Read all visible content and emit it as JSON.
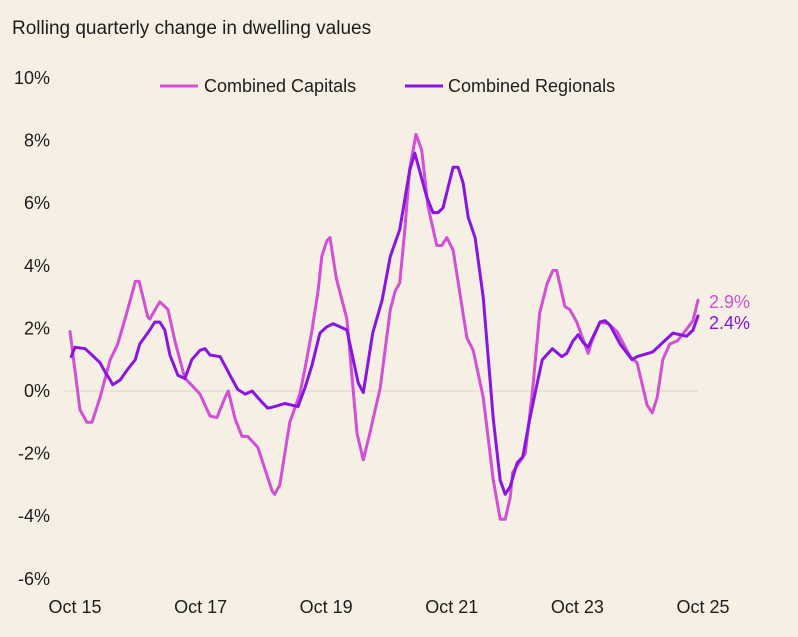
{
  "chart_data": {
    "type": "line",
    "title": "Rolling quarterly change in dwelling values",
    "xlabel": "",
    "ylabel": "",
    "ylim": [
      -6,
      10
    ],
    "xlim": [
      2015.75,
      2025.75
    ],
    "yticks": [
      "10%",
      "8%",
      "6%",
      "4%",
      "2%",
      "0%",
      "-2%",
      "-4%",
      "-6%"
    ],
    "ytick_values": [
      10,
      8,
      6,
      4,
      2,
      0,
      -2,
      -4,
      -6
    ],
    "xticks": [
      "Oct 15",
      "Oct 17",
      "Oct 19",
      "Oct 21",
      "Oct 23",
      "Oct 25"
    ],
    "xtick_values": [
      2015.75,
      2017.75,
      2019.75,
      2021.75,
      2023.75,
      2025.75
    ],
    "grid": false,
    "zero_line": true,
    "legend_position": "top",
    "series": [
      {
        "name": "Combined Capitals",
        "color": "#d24fd6",
        "end_label": "2.9%",
        "points": [
          [
            2015.75,
            1.9
          ],
          [
            2015.91,
            -0.6
          ],
          [
            2016.02,
            -1.0
          ],
          [
            2016.1,
            -1.0
          ],
          [
            2016.23,
            -0.2
          ],
          [
            2016.39,
            1.0
          ],
          [
            2016.51,
            1.5
          ],
          [
            2016.64,
            2.4
          ],
          [
            2016.75,
            3.2
          ],
          [
            2016.79,
            3.5
          ],
          [
            2016.85,
            3.5
          ],
          [
            2016.99,
            2.35
          ],
          [
            2017.02,
            2.3
          ],
          [
            2017.18,
            2.85
          ],
          [
            2017.31,
            2.6
          ],
          [
            2017.42,
            1.6
          ],
          [
            2017.58,
            0.4
          ],
          [
            2017.66,
            0.25
          ],
          [
            2017.82,
            -0.1
          ],
          [
            2017.98,
            -0.8
          ],
          [
            2018.09,
            -0.85
          ],
          [
            2018.22,
            -0.2
          ],
          [
            2018.27,
            0.0
          ],
          [
            2018.38,
            -0.9
          ],
          [
            2018.49,
            -1.45
          ],
          [
            2018.58,
            -1.45
          ],
          [
            2018.74,
            -1.8
          ],
          [
            2018.97,
            -3.2
          ],
          [
            2019.01,
            -3.3
          ],
          [
            2019.09,
            -3.0
          ],
          [
            2019.25,
            -1.0
          ],
          [
            2019.41,
            -0.1
          ],
          [
            2019.49,
            0.7
          ],
          [
            2019.6,
            1.9
          ],
          [
            2019.7,
            3.2
          ],
          [
            2019.76,
            4.3
          ],
          [
            2019.84,
            4.8
          ],
          [
            2019.89,
            4.9
          ],
          [
            2019.99,
            3.6
          ],
          [
            2020.16,
            2.3
          ],
          [
            2020.32,
            -1.35
          ],
          [
            2020.42,
            -2.2
          ],
          [
            2020.53,
            -1.3
          ],
          [
            2020.69,
            0.1
          ],
          [
            2020.85,
            2.6
          ],
          [
            2020.93,
            3.2
          ],
          [
            2021.0,
            3.45
          ],
          [
            2021.08,
            5.1
          ],
          [
            2021.16,
            7.1
          ],
          [
            2021.26,
            8.2
          ],
          [
            2021.35,
            7.7
          ],
          [
            2021.45,
            5.9
          ],
          [
            2021.59,
            4.65
          ],
          [
            2021.67,
            4.65
          ],
          [
            2021.75,
            4.9
          ],
          [
            2021.85,
            4.5
          ],
          [
            2022.07,
            1.7
          ],
          [
            2022.17,
            1.3
          ],
          [
            2022.33,
            -0.2
          ],
          [
            2022.49,
            -2.85
          ],
          [
            2022.6,
            -4.1
          ],
          [
            2022.68,
            -4.1
          ],
          [
            2022.76,
            -3.4
          ],
          [
            2022.8,
            -2.6
          ],
          [
            2023.0,
            -2.0
          ],
          [
            2023.12,
            0.1
          ],
          [
            2023.23,
            2.5
          ],
          [
            2023.35,
            3.45
          ],
          [
            2023.44,
            3.85
          ],
          [
            2023.5,
            3.85
          ],
          [
            2023.63,
            2.7
          ],
          [
            2023.71,
            2.6
          ],
          [
            2023.82,
            2.2
          ],
          [
            2024.0,
            1.2
          ],
          [
            2024.06,
            1.6
          ],
          [
            2024.19,
            2.2
          ],
          [
            2024.32,
            2.15
          ],
          [
            2024.46,
            1.9
          ],
          [
            2024.67,
            1.1
          ],
          [
            2024.78,
            0.9
          ],
          [
            2024.94,
            -0.45
          ],
          [
            2025.02,
            -0.7
          ],
          [
            2025.1,
            -0.2
          ],
          [
            2025.19,
            1.0
          ],
          [
            2025.3,
            1.5
          ],
          [
            2025.42,
            1.6
          ],
          [
            2025.54,
            1.9
          ],
          [
            2025.67,
            2.25
          ],
          [
            2025.75,
            2.9
          ]
        ]
      },
      {
        "name": "Combined Regionals",
        "color": "#8a14e0",
        "end_label": "2.4%",
        "points": [
          [
            2015.77,
            1.1
          ],
          [
            2015.83,
            1.4
          ],
          [
            2015.99,
            1.35
          ],
          [
            2016.1,
            1.15
          ],
          [
            2016.23,
            0.9
          ],
          [
            2016.31,
            0.6
          ],
          [
            2016.39,
            0.35
          ],
          [
            2016.43,
            0.2
          ],
          [
            2016.55,
            0.35
          ],
          [
            2016.67,
            0.7
          ],
          [
            2016.79,
            1.0
          ],
          [
            2016.86,
            1.5
          ],
          [
            2017.02,
            1.95
          ],
          [
            2017.1,
            2.2
          ],
          [
            2017.18,
            2.2
          ],
          [
            2017.26,
            1.95
          ],
          [
            2017.34,
            1.15
          ],
          [
            2017.47,
            0.5
          ],
          [
            2017.58,
            0.4
          ],
          [
            2017.69,
            1.0
          ],
          [
            2017.82,
            1.3
          ],
          [
            2017.9,
            1.35
          ],
          [
            2017.98,
            1.15
          ],
          [
            2018.14,
            1.1
          ],
          [
            2018.3,
            0.5
          ],
          [
            2018.42,
            0.05
          ],
          [
            2018.54,
            -0.1
          ],
          [
            2018.65,
            0.0
          ],
          [
            2018.78,
            -0.3
          ],
          [
            2018.9,
            -0.55
          ],
          [
            2019.01,
            -0.5
          ],
          [
            2019.17,
            -0.4
          ],
          [
            2019.38,
            -0.5
          ],
          [
            2019.49,
            0.1
          ],
          [
            2019.6,
            0.8
          ],
          [
            2019.73,
            1.85
          ],
          [
            2019.84,
            2.05
          ],
          [
            2019.94,
            2.15
          ],
          [
            2020.05,
            2.05
          ],
          [
            2020.16,
            1.95
          ],
          [
            2020.34,
            0.25
          ],
          [
            2020.42,
            -0.05
          ],
          [
            2020.57,
            1.85
          ],
          [
            2020.72,
            2.9
          ],
          [
            2020.85,
            4.3
          ],
          [
            2021.0,
            5.15
          ],
          [
            2021.16,
            7.05
          ],
          [
            2021.24,
            7.6
          ],
          [
            2021.43,
            6.2
          ],
          [
            2021.53,
            5.7
          ],
          [
            2021.61,
            5.7
          ],
          [
            2021.69,
            5.85
          ],
          [
            2021.85,
            7.15
          ],
          [
            2021.93,
            7.15
          ],
          [
            2022.01,
            6.65
          ],
          [
            2022.09,
            5.55
          ],
          [
            2022.2,
            4.9
          ],
          [
            2022.33,
            3.0
          ],
          [
            2022.49,
            -0.9
          ],
          [
            2022.6,
            -2.85
          ],
          [
            2022.68,
            -3.3
          ],
          [
            2022.76,
            -3.05
          ],
          [
            2022.87,
            -2.3
          ],
          [
            2022.96,
            -2.1
          ],
          [
            2023.07,
            -0.9
          ],
          [
            2023.19,
            0.25
          ],
          [
            2023.27,
            1.0
          ],
          [
            2023.43,
            1.35
          ],
          [
            2023.58,
            1.1
          ],
          [
            2023.66,
            1.2
          ],
          [
            2023.76,
            1.6
          ],
          [
            2023.84,
            1.8
          ],
          [
            2023.92,
            1.55
          ],
          [
            2024.0,
            1.4
          ],
          [
            2024.19,
            2.2
          ],
          [
            2024.27,
            2.25
          ],
          [
            2024.35,
            2.1
          ],
          [
            2024.51,
            1.5
          ],
          [
            2024.7,
            1.0
          ],
          [
            2024.78,
            1.1
          ],
          [
            2024.95,
            1.2
          ],
          [
            2025.03,
            1.25
          ],
          [
            2025.19,
            1.55
          ],
          [
            2025.35,
            1.85
          ],
          [
            2025.57,
            1.75
          ],
          [
            2025.67,
            1.95
          ],
          [
            2025.75,
            2.4
          ]
        ]
      }
    ]
  }
}
